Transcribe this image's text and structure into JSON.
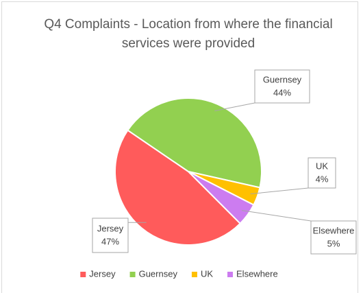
{
  "chart_data": {
    "type": "pie",
    "title": "Q4 Complaints - Location from where the financial services were provided",
    "categories": [
      "Jersey",
      "Guernsey",
      "UK",
      "Elsewhere"
    ],
    "values": [
      47,
      44,
      4,
      5
    ],
    "value_labels": [
      "47%",
      "44%",
      "4%",
      "5%"
    ],
    "colors": [
      "#ff5b5b",
      "#92d050",
      "#ffc000",
      "#cc7cf0"
    ],
    "legend": "bottom"
  }
}
